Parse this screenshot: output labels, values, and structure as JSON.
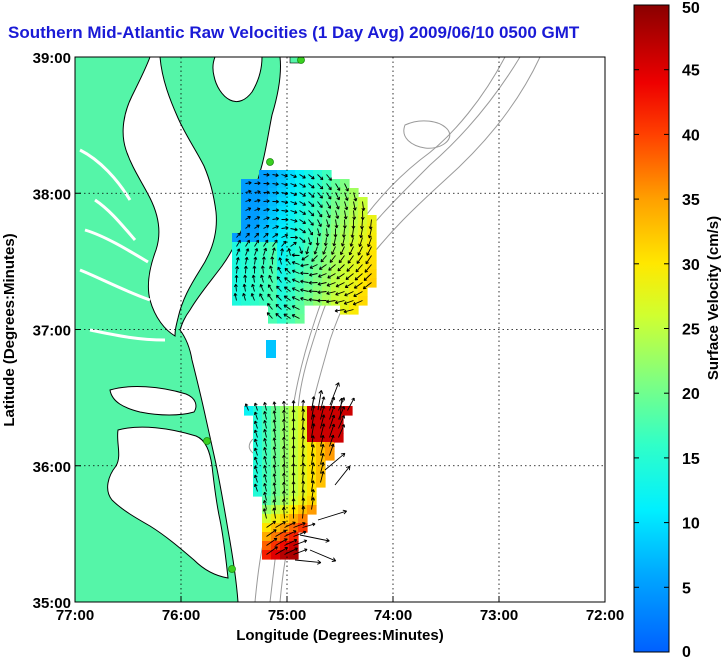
{
  "chart_data": {
    "type": "vector-map",
    "title": "Southern Mid-Atlantic Raw Velocities (1 Day Avg) 2009/06/10 0500 GMT",
    "xlabel": "Longitude (Degrees:Minutes)",
    "ylabel": "Latitude (Degrees:Minutes)",
    "xlim": [
      -77,
      -72
    ],
    "ylim": [
      35,
      39
    ],
    "x_ticks": [
      -77,
      -76,
      -75,
      -74,
      -73,
      -72
    ],
    "x_tick_labels": [
      "77:00",
      "76:00",
      "75:00",
      "74:00",
      "73:00",
      "72:00"
    ],
    "y_ticks": [
      35,
      36,
      37,
      38,
      39
    ],
    "y_tick_labels": [
      "35:00",
      "36:00",
      "37:00",
      "38:00",
      "39:00"
    ],
    "grid": "dotted",
    "colorbar": {
      "label": "Surface Velocity (cm/s)",
      "range": [
        0,
        50
      ],
      "ticks": [
        0,
        5,
        10,
        15,
        20,
        25,
        30,
        35,
        40,
        45,
        50
      ],
      "tick_labels": [
        "0",
        "5",
        "10",
        "15",
        "20",
        "25",
        "30",
        "35",
        "40",
        "45",
        "50"
      ],
      "colormap": "jet"
    },
    "regions": [
      {
        "name": "north",
        "center": [
          -74.95,
          37.62
        ],
        "speed_range": [
          5,
          33
        ]
      },
      {
        "name": "south",
        "center": [
          -75.0,
          35.9
        ],
        "speed_range": [
          12,
          48
        ]
      }
    ]
  },
  "colors": {
    "land": "#55f5a8",
    "coast": "#000000",
    "bathymetry": "#9a9a9a",
    "title": "#1a1ad6",
    "site": "#3ad020"
  }
}
